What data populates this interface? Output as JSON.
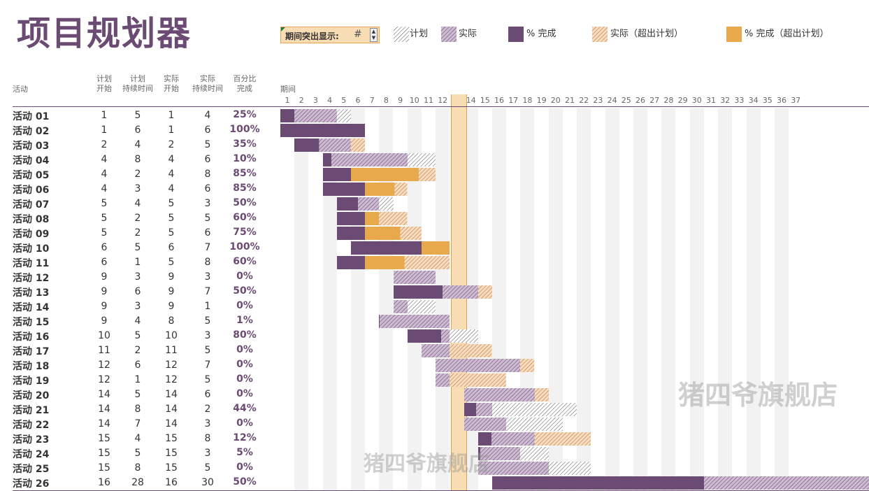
{
  "title": "项目规划器",
  "highlight": {
    "label": "期间突出显示:",
    "value": "#"
  },
  "legend": [
    {
      "label": "计划",
      "icon": "plan-hatch-swatch"
    },
    {
      "label": "实际",
      "icon": "actual-hatch-swatch"
    },
    {
      "label": "% 完成",
      "icon": "complete-solid-swatch"
    },
    {
      "label": "实际（超出计划）",
      "icon": "over-actual-hatch-swatch"
    },
    {
      "label": "% 完成（超出计划）",
      "icon": "over-complete-solid-swatch"
    }
  ],
  "headers": {
    "activity": "活动",
    "plan_start": [
      "计划",
      "开始"
    ],
    "plan_duration": [
      "计划",
      "持续时间"
    ],
    "actual_start": [
      "实际",
      "开始"
    ],
    "actual_duration": [
      "实际",
      "持续时间"
    ],
    "percent": [
      "百分比",
      "完成"
    ],
    "period": "期间"
  },
  "colors": {
    "purple": "#6b4b73",
    "orange": "#e8a84c",
    "highlight": "#f8dcb3",
    "gridbg": "#f2f2f2"
  },
  "highlight_period": 13,
  "periods": [
    1,
    2,
    3,
    4,
    5,
    6,
    7,
    8,
    9,
    10,
    11,
    12,
    13,
    14,
    15,
    16,
    17,
    18,
    19,
    20,
    21,
    22,
    23,
    24,
    25,
    26,
    27,
    28,
    29,
    30,
    31,
    32,
    33,
    34,
    35,
    36,
    37
  ],
  "activities": [
    {
      "name": "活动 01",
      "ps": 1,
      "pd": 5,
      "as": 1,
      "ad": 4,
      "pct": "25%",
      "p": 25
    },
    {
      "name": "活动 02",
      "ps": 1,
      "pd": 6,
      "as": 1,
      "ad": 6,
      "pct": "100%",
      "p": 100
    },
    {
      "name": "活动 03",
      "ps": 2,
      "pd": 4,
      "as": 2,
      "ad": 5,
      "pct": "35%",
      "p": 35
    },
    {
      "name": "活动 04",
      "ps": 4,
      "pd": 8,
      "as": 4,
      "ad": 6,
      "pct": "10%",
      "p": 10
    },
    {
      "name": "活动 05",
      "ps": 4,
      "pd": 2,
      "as": 4,
      "ad": 8,
      "pct": "85%",
      "p": 85
    },
    {
      "name": "活动 06",
      "ps": 4,
      "pd": 3,
      "as": 4,
      "ad": 6,
      "pct": "85%",
      "p": 85
    },
    {
      "name": "活动 07",
      "ps": 5,
      "pd": 4,
      "as": 5,
      "ad": 3,
      "pct": "50%",
      "p": 50
    },
    {
      "name": "活动 08",
      "ps": 5,
      "pd": 2,
      "as": 5,
      "ad": 5,
      "pct": "60%",
      "p": 60
    },
    {
      "name": "活动 09",
      "ps": 5,
      "pd": 2,
      "as": 5,
      "ad": 6,
      "pct": "75%",
      "p": 75
    },
    {
      "name": "活动 10",
      "ps": 6,
      "pd": 5,
      "as": 6,
      "ad": 7,
      "pct": "100%",
      "p": 100
    },
    {
      "name": "活动 11",
      "ps": 6,
      "pd": 1,
      "as": 5,
      "ad": 8,
      "pct": "60%",
      "p": 60
    },
    {
      "name": "活动 12",
      "ps": 9,
      "pd": 3,
      "as": 9,
      "ad": 3,
      "pct": "0%",
      "p": 0
    },
    {
      "name": "活动 13",
      "ps": 9,
      "pd": 6,
      "as": 9,
      "ad": 7,
      "pct": "50%",
      "p": 50
    },
    {
      "name": "活动 14",
      "ps": 9,
      "pd": 3,
      "as": 9,
      "ad": 1,
      "pct": "0%",
      "p": 0
    },
    {
      "name": "活动 15",
      "ps": 9,
      "pd": 4,
      "as": 8,
      "ad": 5,
      "pct": "1%",
      "p": 1
    },
    {
      "name": "活动 16",
      "ps": 10,
      "pd": 5,
      "as": 10,
      "ad": 3,
      "pct": "80%",
      "p": 80
    },
    {
      "name": "活动 17",
      "ps": 11,
      "pd": 2,
      "as": 11,
      "ad": 5,
      "pct": "0%",
      "p": 0
    },
    {
      "name": "活动 18",
      "ps": 12,
      "pd": 6,
      "as": 12,
      "ad": 7,
      "pct": "0%",
      "p": 0
    },
    {
      "name": "活动 19",
      "ps": 12,
      "pd": 1,
      "as": 12,
      "ad": 5,
      "pct": "0%",
      "p": 0
    },
    {
      "name": "活动 20",
      "ps": 14,
      "pd": 5,
      "as": 14,
      "ad": 6,
      "pct": "0%",
      "p": 0
    },
    {
      "name": "活动 21",
      "ps": 14,
      "pd": 8,
      "as": 14,
      "ad": 2,
      "pct": "44%",
      "p": 44
    },
    {
      "name": "活动 22",
      "ps": 14,
      "pd": 7,
      "as": 14,
      "ad": 3,
      "pct": "0%",
      "p": 0
    },
    {
      "name": "活动 23",
      "ps": 15,
      "pd": 4,
      "as": 15,
      "ad": 8,
      "pct": "12%",
      "p": 12
    },
    {
      "name": "活动 24",
      "ps": 15,
      "pd": 5,
      "as": 15,
      "ad": 3,
      "pct": "5%",
      "p": 5
    },
    {
      "name": "活动 25",
      "ps": 15,
      "pd": 8,
      "as": 15,
      "ad": 5,
      "pct": "0%",
      "p": 0
    },
    {
      "name": "活动 26",
      "ps": 16,
      "pd": 28,
      "as": 16,
      "ad": 30,
      "pct": "50%",
      "p": 50
    }
  ],
  "watermarks": [
    "猪四爷旗舰店",
    "猪四爷旗舰店"
  ]
}
